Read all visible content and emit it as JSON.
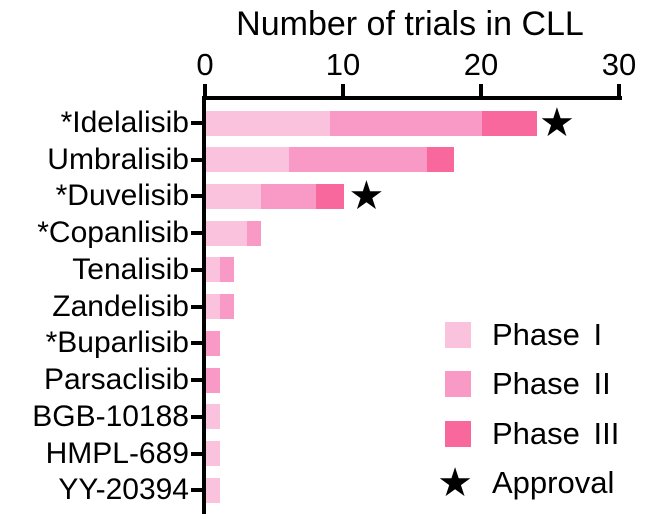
{
  "title": "Number of trials in CLL",
  "chart_data": {
    "type": "bar",
    "orientation": "horizontal",
    "stacked": true,
    "title": "Number of trials in CLL",
    "xlabel": "",
    "ylabel": "",
    "xlim": [
      0,
      30
    ],
    "x_ticks": [
      0,
      10,
      20,
      30
    ],
    "grid": false,
    "categories": [
      "*Idelalisib",
      "Umbralisib",
      "*Duvelisib",
      "*Copanlisib",
      "Tenalisib",
      "Zandelisib",
      "*Buparlisib",
      "Parsaclisib",
      "BGB-10188",
      "HMPL-689",
      "YY-20394"
    ],
    "series": [
      {
        "name": "Phase I",
        "color": "#FBC2DD",
        "values": [
          9,
          6,
          4,
          3,
          1,
          1,
          0,
          0,
          1,
          1,
          1
        ]
      },
      {
        "name": "Phase II",
        "color": "#F99AC6",
        "values": [
          11,
          10,
          4,
          1,
          1,
          1,
          1,
          1,
          0,
          0,
          0
        ]
      },
      {
        "name": "Phase III",
        "color": "#F9689D",
        "values": [
          4,
          2,
          2,
          0,
          0,
          0,
          0,
          0,
          0,
          0,
          0
        ]
      }
    ],
    "totals": [
      24,
      18,
      10,
      4,
      2,
      2,
      1,
      1,
      1,
      1,
      1
    ],
    "approvals": [
      {
        "category": "*Idelalisib",
        "x": 25.5
      },
      {
        "category": "*Duvelisib",
        "x": 11.7
      }
    ],
    "star_symbol": "★",
    "legend": {
      "position": "bottom-right",
      "items": [
        {
          "label": "Phase I",
          "type": "swatch",
          "color": "#FBC2DD"
        },
        {
          "label": "Phase II",
          "type": "swatch",
          "color": "#F99AC6"
        },
        {
          "label": "Phase III",
          "type": "swatch",
          "color": "#F9689D"
        },
        {
          "label": "Approval",
          "type": "star",
          "color": "#000000"
        }
      ]
    },
    "axis_color": "#000000"
  }
}
